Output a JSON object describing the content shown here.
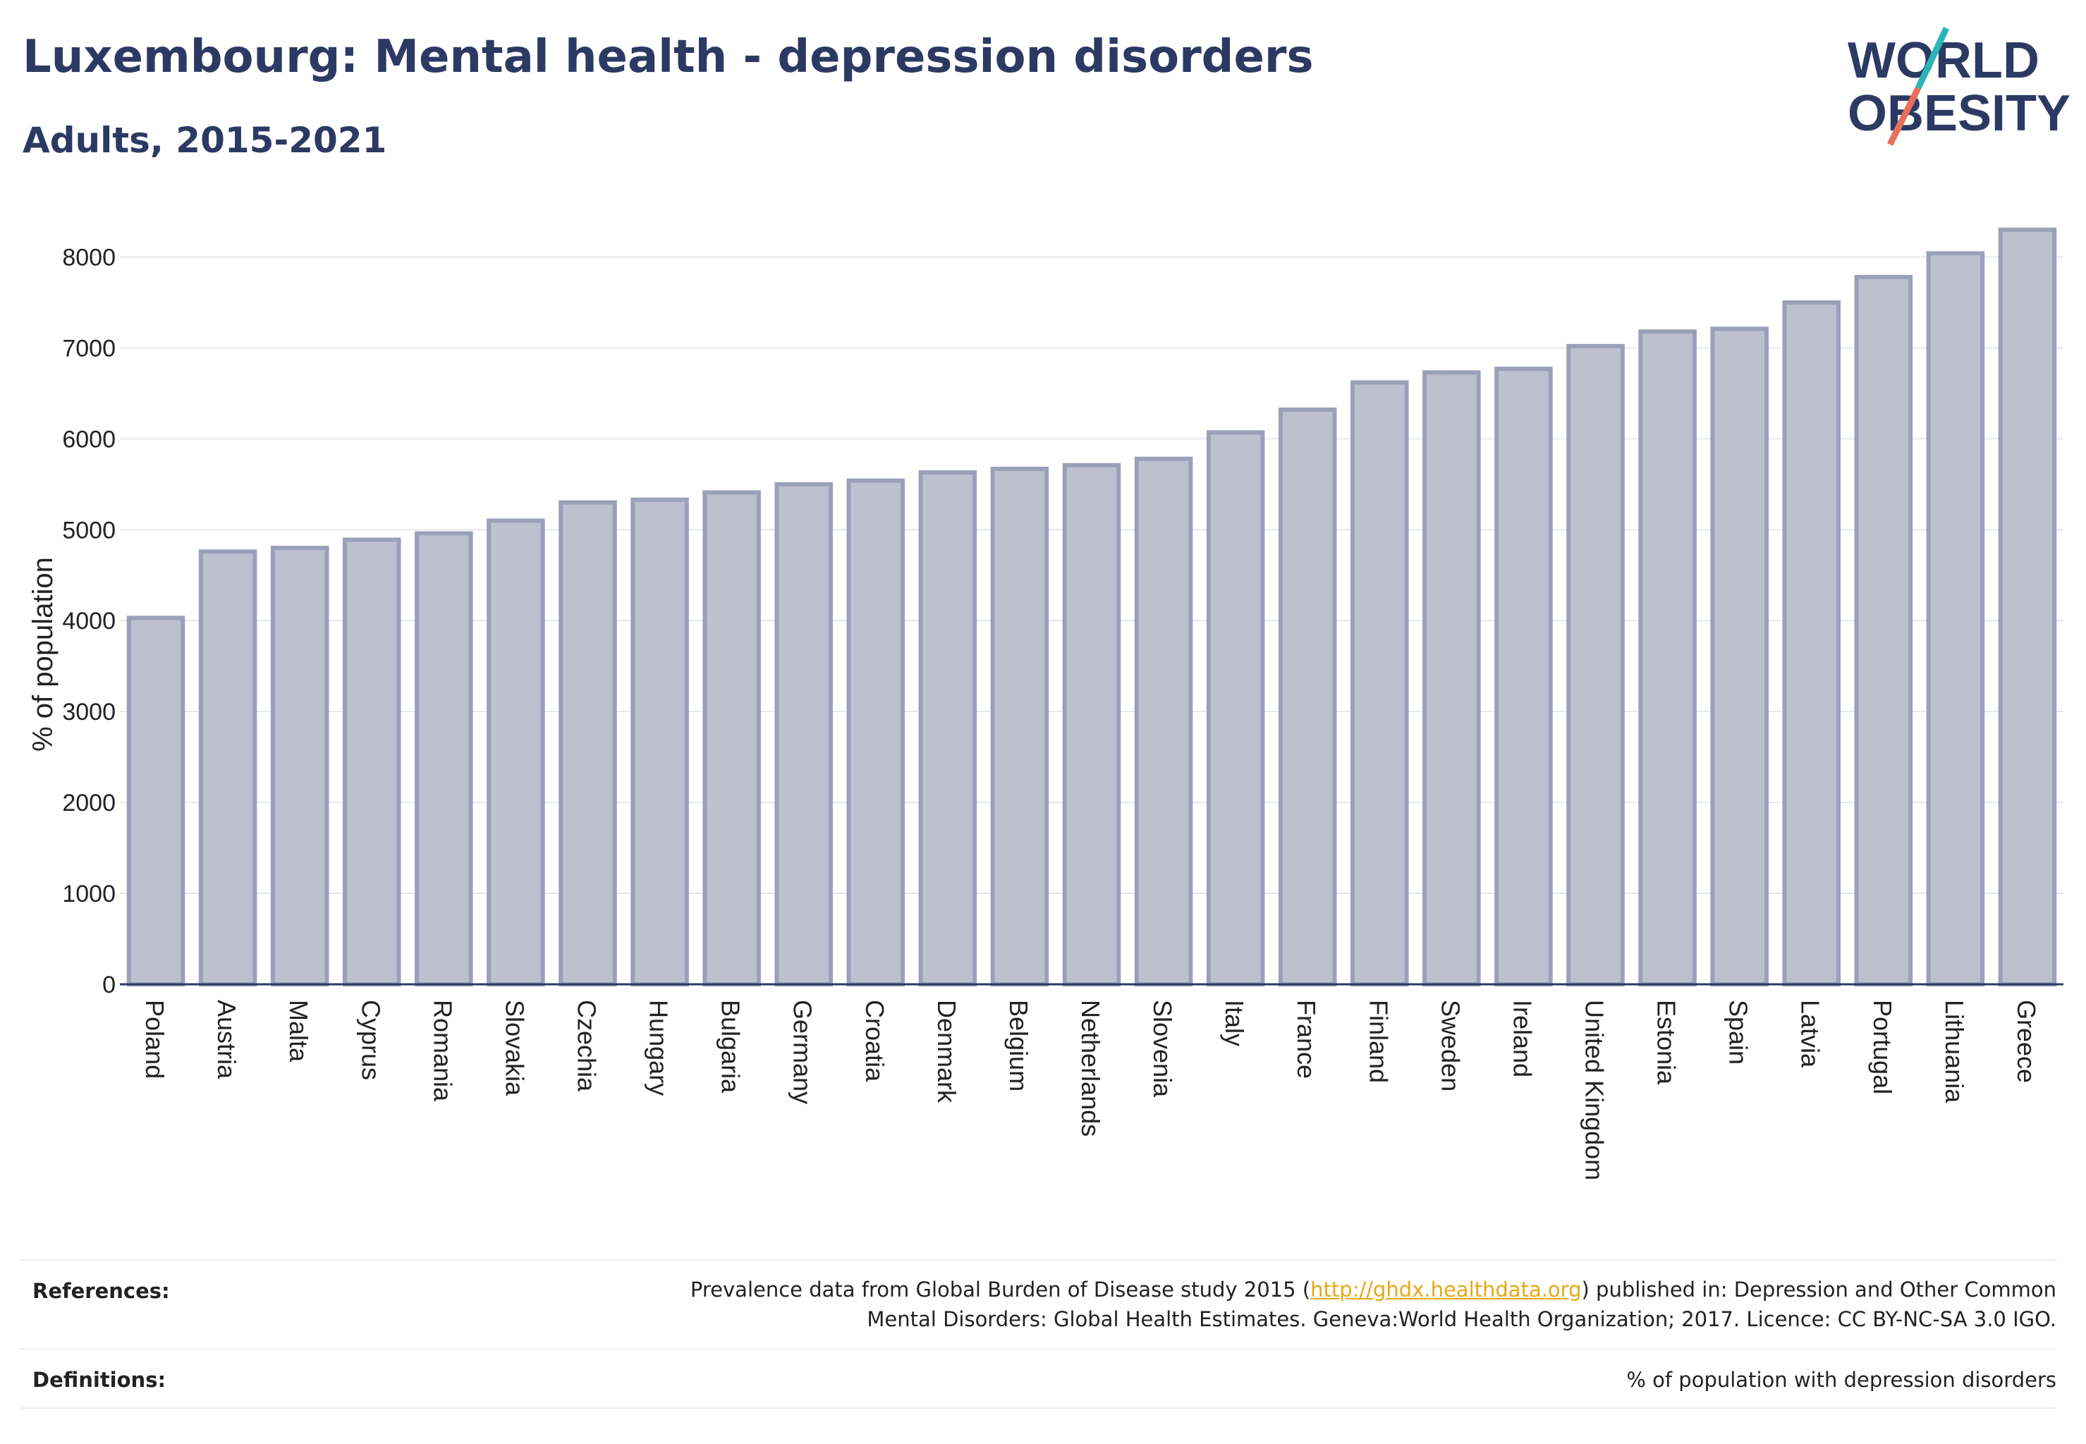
{
  "header": {
    "title": "Luxembourg: Mental health - depression disorders",
    "subtitle": "Adults, 2015-2021"
  },
  "logo": {
    "line1": "WORLD",
    "line2": "OBESITY",
    "accent_teal": "#2bb5b8",
    "accent_coral": "#e8705a",
    "text_color": "#2c3a63"
  },
  "chart_data": {
    "type": "bar",
    "ylabel": "% of population",
    "ylim": [
      0,
      8500
    ],
    "yticks": [
      0,
      1000,
      2000,
      3000,
      4000,
      5000,
      6000,
      7000,
      8000
    ],
    "grid": true,
    "bar_fill": "#bcc0cf",
    "bar_stroke": "#9aa0b8",
    "categories": [
      "Poland",
      "Austria",
      "Malta",
      "Cyprus",
      "Romania",
      "Slovakia",
      "Czechia",
      "Hungary",
      "Bulgaria",
      "Germany",
      "Croatia",
      "Denmark",
      "Belgium",
      "Netherlands",
      "Slovenia",
      "Italy",
      "France",
      "Finland",
      "Sweden",
      "Ireland",
      "United Kingdom",
      "Estonia",
      "Spain",
      "Latvia",
      "Portugal",
      "Lithuania",
      "Greece"
    ],
    "values": [
      4030,
      4760,
      4800,
      4890,
      4960,
      5100,
      5300,
      5330,
      5410,
      5500,
      5540,
      5630,
      5670,
      5710,
      5780,
      6070,
      6320,
      6620,
      6730,
      6770,
      7020,
      7180,
      7210,
      7500,
      7780,
      8040,
      8300
    ]
  },
  "footer": {
    "references_label": "References:",
    "references_line1_prefix": "Prevalence data from Global Burden of Disease study 2015 (",
    "references_link": "http://ghdx.healthdata.org",
    "references_line1_suffix": ") published in: Depression and Other Common",
    "references_line2": "Mental Disorders: Global Health Estimates. Geneva:World Health Organization; 2017. Licence: CC BY-NC-SA 3.0 IGO.",
    "definitions_label": "Definitions:",
    "definitions_text": "% of population with depression disorders"
  }
}
